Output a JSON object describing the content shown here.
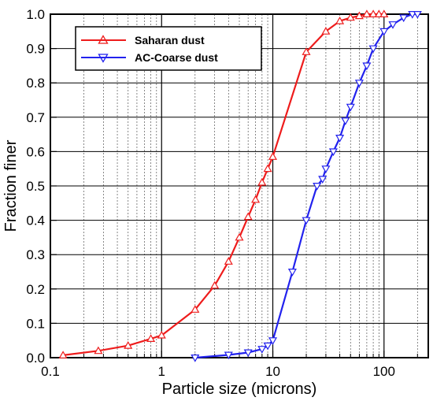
{
  "chart_data": {
    "type": "line",
    "title": "",
    "xlabel": "Particle size (microns)",
    "ylabel": "Fraction finer",
    "xscale": "log",
    "xlim": [
      0.1,
      250
    ],
    "ylim": [
      0.0,
      1.0
    ],
    "x_ticks": [
      "0.1",
      "1",
      "10",
      "100"
    ],
    "y_ticks": [
      "0.0",
      "0.1",
      "0.2",
      "0.3",
      "0.4",
      "0.5",
      "0.6",
      "0.7",
      "0.8",
      "0.9",
      "1.0"
    ],
    "grid": true,
    "legend_position": "top-left",
    "series": [
      {
        "name": "Saharan dust",
        "color": "#ee1c1c",
        "marker": "triangle-up",
        "x": [
          0.13,
          0.27,
          0.5,
          0.8,
          1.0,
          2.0,
          3.0,
          4.0,
          5.0,
          6.0,
          7.0,
          8.0,
          9.0,
          10.0,
          20.0,
          30.0,
          40.0,
          50.0,
          60.0,
          70.0,
          80.0,
          90.0,
          100.0
        ],
        "y": [
          0.007,
          0.02,
          0.035,
          0.055,
          0.065,
          0.14,
          0.21,
          0.28,
          0.35,
          0.41,
          0.46,
          0.51,
          0.55,
          0.585,
          0.89,
          0.95,
          0.98,
          0.99,
          0.995,
          1.0,
          1.0,
          1.0,
          1.0
        ]
      },
      {
        "name": "AC-Coarse dust",
        "color": "#2222ee",
        "marker": "triangle-down",
        "x": [
          2.0,
          4.0,
          6.0,
          8.0,
          9.0,
          10.0,
          15.0,
          20.0,
          25.0,
          28.0,
          30.0,
          35.0,
          40.0,
          45.0,
          50.0,
          60.0,
          70.0,
          80.0,
          100.0,
          120.0,
          150.0,
          180.0,
          200.0
        ],
        "y": [
          0.0,
          0.008,
          0.015,
          0.025,
          0.035,
          0.05,
          0.25,
          0.4,
          0.5,
          0.52,
          0.55,
          0.6,
          0.64,
          0.69,
          0.73,
          0.8,
          0.85,
          0.9,
          0.95,
          0.97,
          0.99,
          1.0,
          1.0
        ]
      }
    ]
  }
}
